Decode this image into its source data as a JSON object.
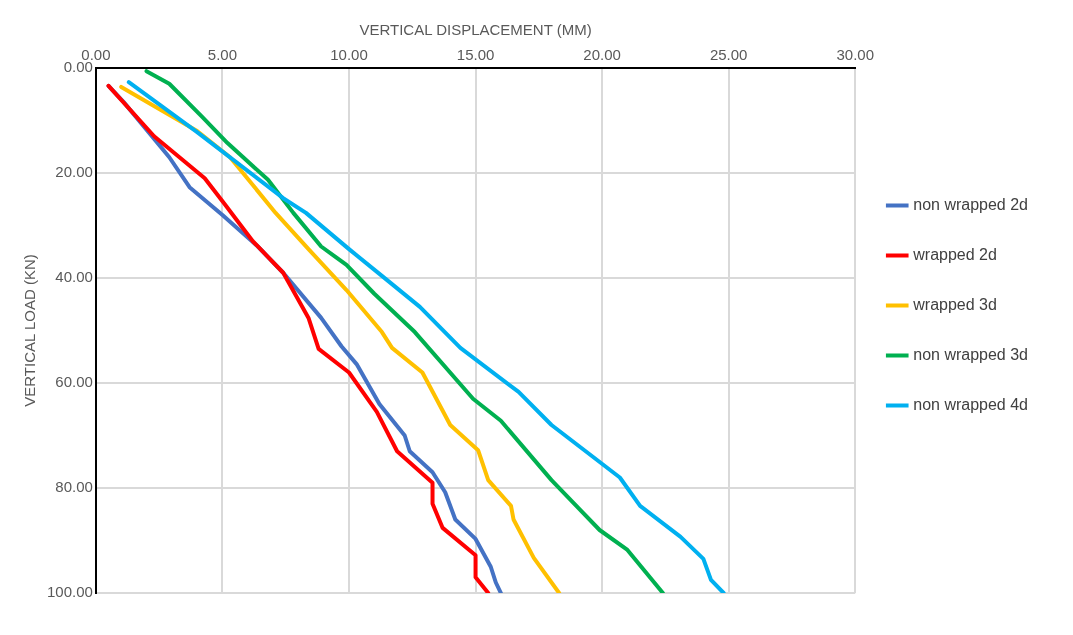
{
  "chart_data": {
    "type": "line",
    "xlabel": "VERTICAL DISPLACEMENT (MM)",
    "ylabel": "VERTICAL LOAD (KN)",
    "xlim": [
      0,
      30
    ],
    "ylim": [
      100,
      0
    ],
    "xticks": [
      {
        "value": 0,
        "label": "0.00"
      },
      {
        "value": 5,
        "label": "5.00"
      },
      {
        "value": 10,
        "label": "10.00"
      },
      {
        "value": 15,
        "label": "15.00"
      },
      {
        "value": 20,
        "label": "20.00"
      },
      {
        "value": 25,
        "label": "25.00"
      },
      {
        "value": 30,
        "label": "30.00"
      }
    ],
    "yticks": [
      {
        "value": 0,
        "label": "0.00"
      },
      {
        "value": 20,
        "label": "20.00"
      },
      {
        "value": 40,
        "label": "40.00"
      },
      {
        "value": 60,
        "label": "60.00"
      },
      {
        "value": 80,
        "label": "80.00"
      },
      {
        "value": 100,
        "label": "100.00"
      }
    ],
    "grid": true,
    "legend": "right",
    "marker": "none",
    "line_style": "solid",
    "series": [
      {
        "name": "non wrapped 2d",
        "color": "#4472c4",
        "x": [
          0.5,
          1.1,
          2.9,
          3.7,
          5,
          6.4,
          7.4,
          8.9,
          9.7,
          10.3,
          11.2,
          12.2,
          12.4,
          13.3,
          13.8,
          14.2,
          15,
          15.6,
          15.8,
          16
        ],
        "values": [
          3.4,
          6.5,
          17,
          22.7,
          28,
          34,
          39,
          47.6,
          53,
          56.4,
          64,
          70,
          73,
          77,
          80.8,
          86,
          89.7,
          95,
          98,
          100
        ]
      },
      {
        "name": "wrapped 2d",
        "color": "#ff0000",
        "x": [
          0.5,
          2.3,
          4.3,
          5.1,
          6.2,
          7.4,
          8.4,
          8.8,
          10,
          11.1,
          11.9,
          13.3,
          13.3,
          13.7,
          15,
          15,
          15.5
        ],
        "values": [
          3.4,
          13,
          21,
          26,
          33,
          39,
          47.6,
          53.5,
          58,
          65.5,
          73,
          79,
          83,
          87.6,
          92.8,
          97,
          100
        ]
      },
      {
        "name": "wrapped 3d",
        "color": "#ffc000",
        "x": [
          1,
          4,
          5.3,
          7.1,
          8.4,
          9.9,
          11.3,
          11.7,
          12.9,
          14,
          15.1,
          15.5,
          16.4,
          16.5,
          17.3,
          18.3
        ],
        "values": [
          3.6,
          12,
          17,
          27.6,
          34.5,
          42.3,
          50.3,
          53.3,
          58,
          68,
          72.8,
          78.5,
          83.4,
          86,
          93.3,
          100
        ]
      },
      {
        "name": "non wrapped 3d",
        "color": "#00b050",
        "x": [
          2,
          2.9,
          4.2,
          5.2,
          6.8,
          7.8,
          8.9,
          9.9,
          11,
          12.6,
          14.9,
          16,
          18,
          19.9,
          21,
          22.4
        ],
        "values": [
          0.6,
          3,
          9.3,
          14.3,
          21.3,
          27.6,
          34,
          37.5,
          43,
          50.3,
          63,
          67.2,
          78.5,
          88,
          91.8,
          100
        ]
      },
      {
        "name": "non wrapped 4d",
        "color": "#00b0f0",
        "x": [
          1.3,
          4,
          7.4,
          8.3,
          10,
          11.3,
          12.8,
          14.4,
          16.7,
          18,
          20.7,
          21.5,
          23.1,
          24,
          24.3,
          24.8
        ],
        "values": [
          2.7,
          12.2,
          24.8,
          27.6,
          34.5,
          39.6,
          45.5,
          53.3,
          61.7,
          68,
          78,
          83.4,
          89.3,
          93.5,
          97.5,
          100
        ]
      }
    ]
  }
}
